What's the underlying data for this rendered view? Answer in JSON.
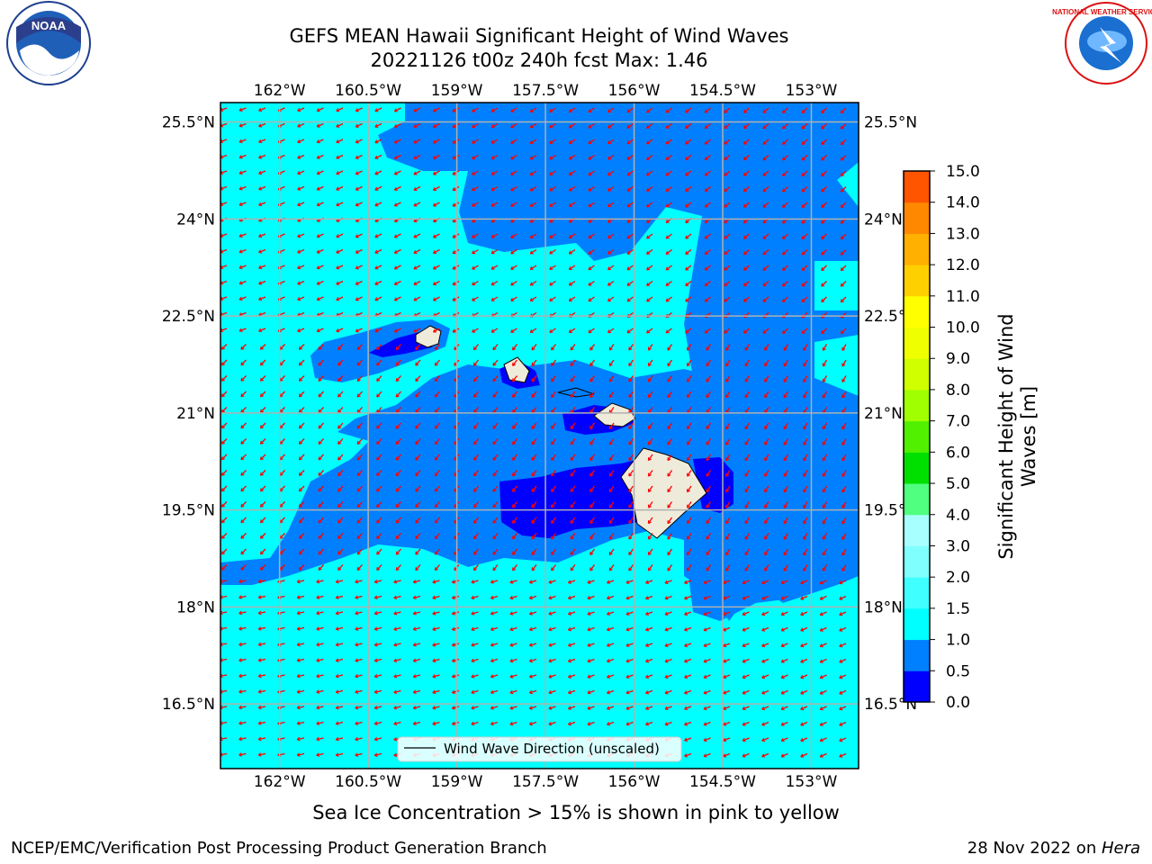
{
  "header": {
    "title_line1": "GEFS MEAN Hawaii Significant Height of Wind Waves",
    "title_line2": "20221126 t00z 240h fcst   Max: 1.46"
  },
  "logos": {
    "noaa_text": "NOAA",
    "noaa_ring_text": "NATIONAL OCEANIC AND ATMOSPHERIC ADMINISTRATION · U.S. DEPARTMENT OF COMMERCE",
    "nws_ring_text": "NATIONAL WEATHER SERVICE"
  },
  "map": {
    "lon_labels": [
      "162°W",
      "160.5°W",
      "159°W",
      "157.5°W",
      "156°W",
      "154.5°W",
      "153°W"
    ],
    "lat_labels": [
      "25.5°N",
      "24°N",
      "22.5°N",
      "21°N",
      "19.5°N",
      "18°N",
      "16.5°N"
    ],
    "lon_range": [
      -163,
      -152.2
    ],
    "lat_range": [
      15.5,
      25.8
    ],
    "legend_label": "Wind Wave Direction (unscaled)",
    "colors": {
      "background_field": "#00ffff",
      "mid_field": "#0080ff",
      "low_field": "#0000ff",
      "land": "#efebdb",
      "arrows": "#ff0000",
      "grid": "#b0b0b0"
    }
  },
  "colorbar": {
    "title": "Significant Height of Wind Waves [m]",
    "tick_labels": [
      "0.0",
      "0.5",
      "1.0",
      "1.5",
      "2.0",
      "3.0",
      "4.0",
      "5.0",
      "6.0",
      "7.0",
      "8.0",
      "9.0",
      "10.0",
      "11.0",
      "12.0",
      "13.0",
      "14.0",
      "15.0"
    ],
    "colors": [
      "#0000ff",
      "#0080ff",
      "#00ffff",
      "#40ffff",
      "#80ffff",
      "#a8ffff",
      "#50ff80",
      "#00e000",
      "#50f000",
      "#a0ff00",
      "#d0ff00",
      "#f0ff00",
      "#ffff00",
      "#ffd000",
      "#ffb000",
      "#ff8800",
      "#ff5500",
      "#ff2200",
      "#ff0000"
    ]
  },
  "footer": {
    "ice_note": "Sea Ice Concentration > 15% is shown in pink to yellow",
    "branch": "NCEP/EMC/Verification Post Processing Product Generation Branch",
    "date_prefix": "28 Nov 2022 on ",
    "date_system": "Hera"
  }
}
